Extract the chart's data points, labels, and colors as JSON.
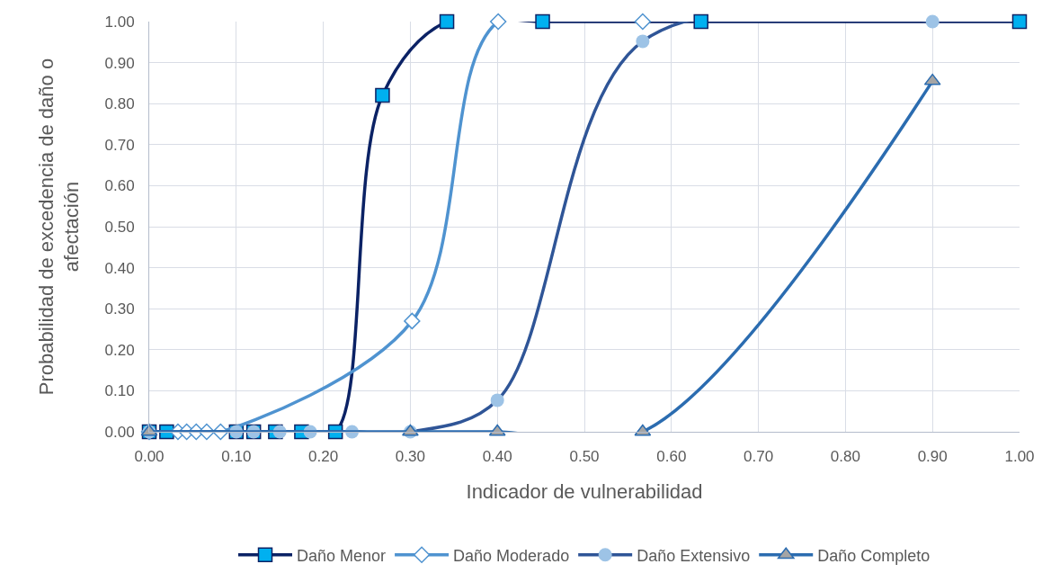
{
  "chart_data": {
    "type": "line",
    "xlabel": "Indicador de vulnerabilidad",
    "ylabel": "Probabilidad de excedencia de daño o\nafectación",
    "xlim": [
      0,
      1
    ],
    "ylim": [
      0,
      1
    ],
    "xticks": [
      {
        "value": 0,
        "label": "0.00"
      },
      {
        "value": 0.1,
        "label": "0.10"
      },
      {
        "value": 0.2,
        "label": "0.20"
      },
      {
        "value": 0.3,
        "label": "0.30"
      },
      {
        "value": 0.4,
        "label": "0.40"
      },
      {
        "value": 0.5,
        "label": "0.50"
      },
      {
        "value": 0.6,
        "label": "0.60"
      },
      {
        "value": 0.7,
        "label": "0.70"
      },
      {
        "value": 0.8,
        "label": "0.80"
      },
      {
        "value": 0.9,
        "label": "0.90"
      },
      {
        "value": 1,
        "label": "1.00"
      }
    ],
    "yticks": [
      {
        "value": 0,
        "label": "0.00"
      },
      {
        "value": 0.1,
        "label": "0.10"
      },
      {
        "value": 0.2,
        "label": "0.20"
      },
      {
        "value": 0.3,
        "label": "0.30"
      },
      {
        "value": 0.4,
        "label": "0.40"
      },
      {
        "value": 0.5,
        "label": "0.50"
      },
      {
        "value": 0.6,
        "label": "0.60"
      },
      {
        "value": 0.7,
        "label": "0.70"
      },
      {
        "value": 0.8,
        "label": "0.80"
      },
      {
        "value": 0.9,
        "label": "0.90"
      },
      {
        "value": 1,
        "label": "1.00"
      }
    ],
    "grid": true,
    "legend": "bottom",
    "line_style": "solid",
    "series": [
      {
        "name": "Daño Menor",
        "color": "#0b2265",
        "marker": "square",
        "x": [
          0,
          0.02,
          0.1,
          0.12,
          0.145,
          0.175,
          0.214,
          0.268,
          0.342,
          0.452,
          0.634,
          1.0
        ],
        "values": [
          0,
          0,
          0,
          0,
          0,
          0,
          0,
          0.82,
          1,
          1,
          1,
          1
        ]
      },
      {
        "name": "Daño Moderado",
        "color": "#4f93d0",
        "marker": "diamond",
        "x": [
          0,
          0.033,
          0.043,
          0.054,
          0.066,
          0.082,
          0.302,
          0.401,
          0.567
        ],
        "values": [
          0,
          0,
          0,
          0,
          0,
          0,
          0.27,
          1,
          1
        ]
      },
      {
        "name": "Daño Extensivo",
        "color": "#2f5597",
        "marker": "circle",
        "x": [
          0,
          0.1,
          0.12,
          0.15,
          0.185,
          0.233,
          0.3,
          0.4,
          0.567,
          0.9
        ],
        "values": [
          0,
          0,
          0,
          0,
          0,
          0,
          0,
          0.077,
          0.952,
          1
        ]
      },
      {
        "name": "Daño Completo",
        "color": "#2b6cb0",
        "marker": "triangle",
        "x": [
          0,
          0.3,
          0.4,
          0.567,
          0.9
        ],
        "values": [
          0,
          0,
          0,
          0,
          0.855
        ]
      }
    ]
  }
}
